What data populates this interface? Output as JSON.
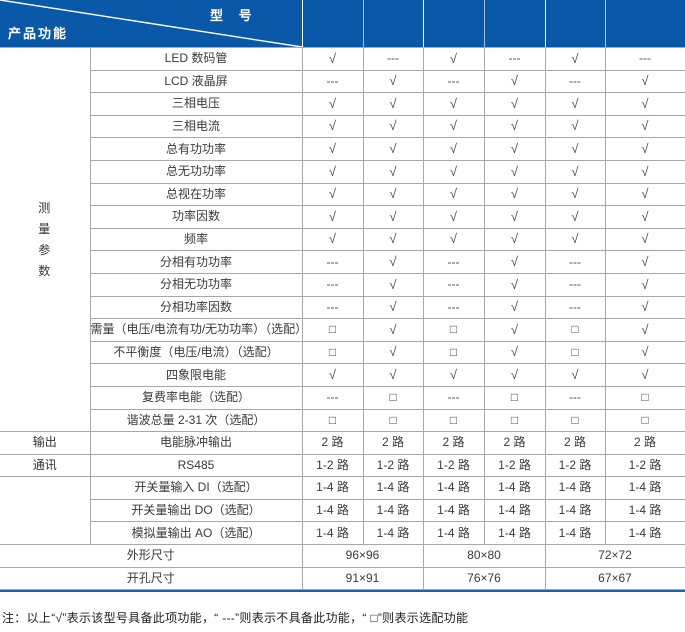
{
  "header": {
    "model_label": "型 号",
    "feature_label": "产品功能",
    "model_columns": [
      "",
      "",
      "",
      "",
      "",
      ""
    ]
  },
  "colors": {
    "header_bg": "#0a58a8",
    "table_border": "#a8a8a8",
    "bottom_rule": "#1c60ae"
  },
  "legend_symbols": {
    "has_feature": "√",
    "no_feature": "---",
    "optional_feature": "□"
  },
  "table": {
    "sections": [
      {
        "category": "测量参数",
        "vertical": true,
        "rows": [
          {
            "label": "LED 数码管",
            "values": [
              "√",
              "---",
              "√",
              "---",
              "√",
              "---"
            ]
          },
          {
            "label": "LCD 液晶屏",
            "values": [
              "---",
              "√",
              "---",
              "√",
              "---",
              "√"
            ]
          },
          {
            "label": "三相电压",
            "values": [
              "√",
              "√",
              "√",
              "√",
              "√",
              "√"
            ]
          },
          {
            "label": "三相电流",
            "values": [
              "√",
              "√",
              "√",
              "√",
              "√",
              "√"
            ]
          },
          {
            "label": "总有功功率",
            "values": [
              "√",
              "√",
              "√",
              "√",
              "√",
              "√"
            ]
          },
          {
            "label": "总无功功率",
            "values": [
              "√",
              "√",
              "√",
              "√",
              "√",
              "√"
            ]
          },
          {
            "label": "总视在功率",
            "values": [
              "√",
              "√",
              "√",
              "√",
              "√",
              "√"
            ]
          },
          {
            "label": "功率因数",
            "values": [
              "√",
              "√",
              "√",
              "√",
              "√",
              "√"
            ]
          },
          {
            "label": "频率",
            "values": [
              "√",
              "√",
              "√",
              "√",
              "√",
              "√"
            ]
          },
          {
            "label": "分相有功功率",
            "values": [
              "---",
              "√",
              "---",
              "√",
              "---",
              "√"
            ]
          },
          {
            "label": "分相无功功率",
            "values": [
              "---",
              "√",
              "---",
              "√",
              "---",
              "√"
            ]
          },
          {
            "label": "分相功率因数",
            "values": [
              "---",
              "√",
              "---",
              "√",
              "---",
              "√"
            ]
          },
          {
            "label": "需量（电压/电流有功/无功功率）（选配）",
            "values": [
              "□",
              "√",
              "□",
              "√",
              "□",
              "√"
            ]
          },
          {
            "label": "不平衡度（电压/电流）（选配）",
            "values": [
              "□",
              "√",
              "□",
              "√",
              "□",
              "√"
            ]
          },
          {
            "label": "四象限电能",
            "values": [
              "√",
              "√",
              "√",
              "√",
              "√",
              "√"
            ]
          },
          {
            "label": "复费率电能（选配）",
            "values": [
              "---",
              "□",
              "---",
              "□",
              "---",
              "□"
            ]
          },
          {
            "label": "谐波总量 2-31 次（选配）",
            "values": [
              "□",
              "□",
              "□",
              "□",
              "□",
              "□"
            ]
          }
        ]
      },
      {
        "category": "输出",
        "vertical": false,
        "rows": [
          {
            "label": "电能脉冲输出",
            "values": [
              "2 路",
              "2 路",
              "2 路",
              "2 路",
              "2 路",
              "2 路"
            ]
          }
        ]
      },
      {
        "category": "通讯",
        "vertical": false,
        "rows": [
          {
            "label": "RS485",
            "values": [
              "1-2 路",
              "1-2 路",
              "1-2 路",
              "1-2 路",
              "1-2 路",
              "1-2 路"
            ]
          }
        ]
      },
      {
        "category": "",
        "vertical": false,
        "rows": [
          {
            "label": "开关量输入 DI（选配）",
            "values": [
              "1-4 路",
              "1-4 路",
              "1-4 路",
              "1-4 路",
              "1-4 路",
              "1-4 路"
            ]
          },
          {
            "label": "开关量输出 DO（选配）",
            "values": [
              "1-4 路",
              "1-4 路",
              "1-4 路",
              "1-4 路",
              "1-4 路",
              "1-4 路"
            ]
          },
          {
            "label": "模拟量输出 AO（选配）",
            "values": [
              "1-4 路",
              "1-4 路",
              "1-4 路",
              "1-4 路",
              "1-4 路",
              "1-4 路"
            ]
          }
        ]
      },
      {
        "category": null,
        "vertical": false,
        "rows": [
          {
            "label": "外形尺寸",
            "values": [
              "96×96",
              "80×80",
              "72×72"
            ]
          },
          {
            "label": "开孔尺寸",
            "values": [
              "91×91",
              "76×76",
              "67×67"
            ]
          }
        ]
      }
    ]
  },
  "footnote": "注：以上“√”表示该型号具备此项功能，“ ---”则表示不具备此功能，“ □”则表示选配功能"
}
